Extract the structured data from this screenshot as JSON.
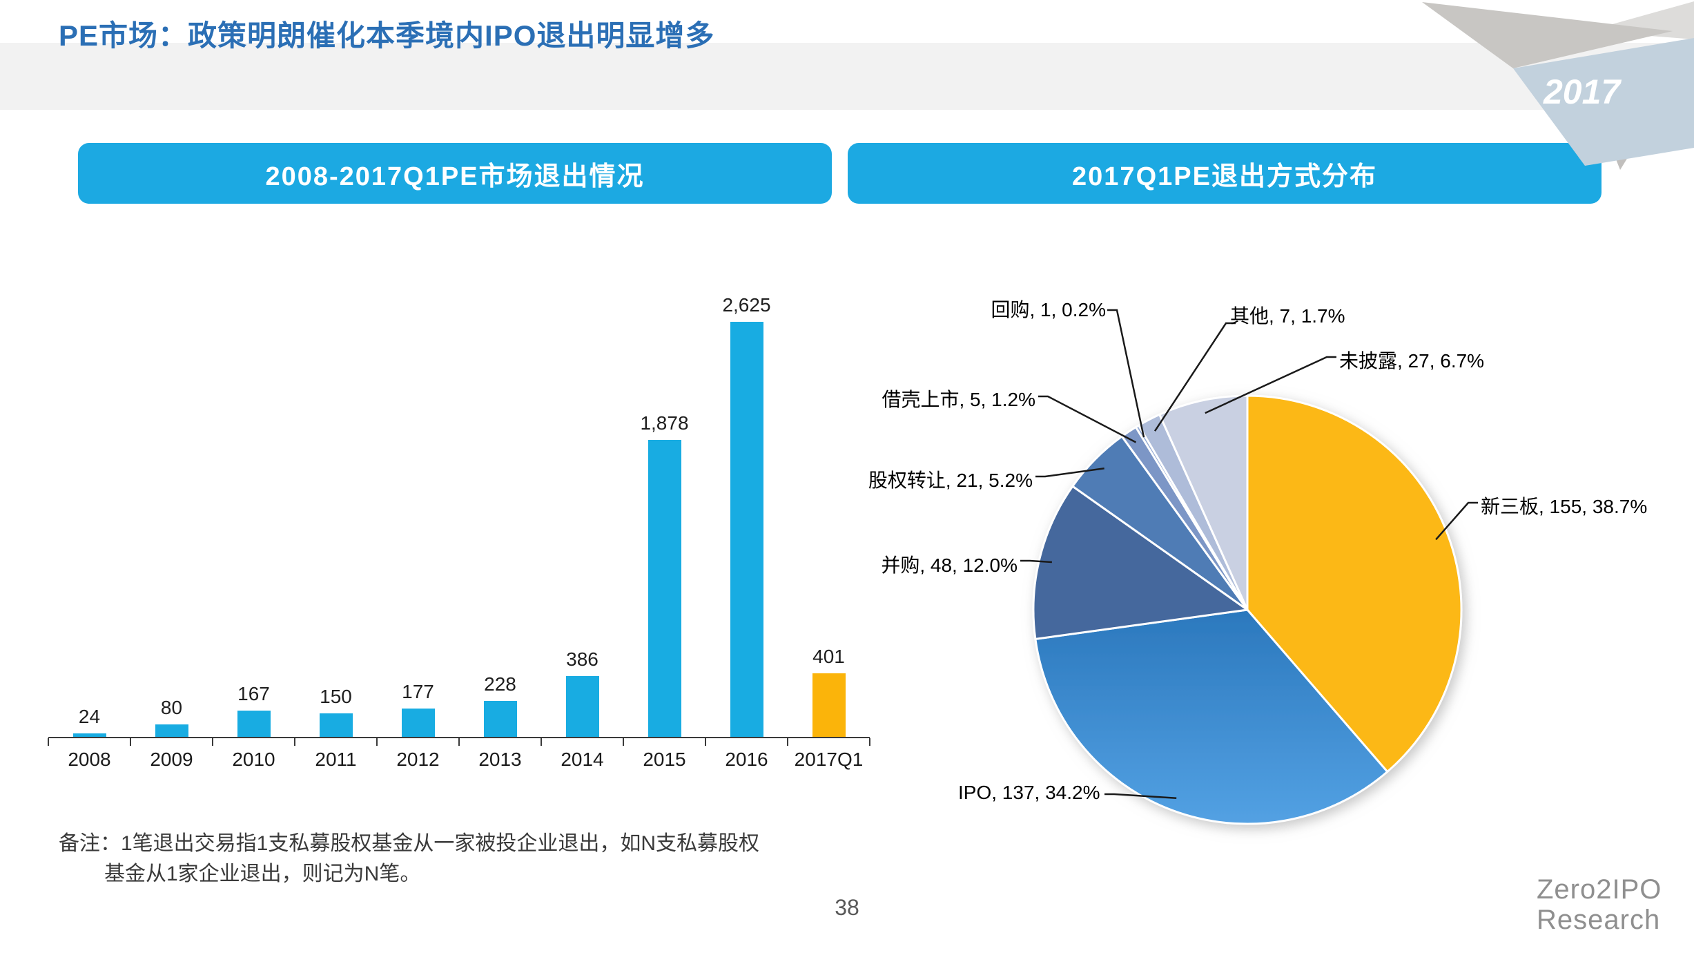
{
  "slide": {
    "title": "PE市场：政策明朗催化本季境内IPO退出明显增多",
    "year_badge": "2017",
    "page_number": "38",
    "note_line1": "备注：1笔退出交易指1支私募股权基金从一家被投企业退出，如N支私募股权",
    "note_line2": "基金从1家企业退出，则记为N笔。",
    "logo_line1": "Zero2IPO",
    "logo_line2": "Research"
  },
  "left_panel": {
    "header": "2008-2017Q1PE市场退出情况"
  },
  "right_panel": {
    "header": "2017Q1PE退出方式分布"
  },
  "colors": {
    "header_pill": "#1CA9E2",
    "title_text": "#2B6FB5",
    "bar_default": "#18ACE2",
    "bar_highlight": "#FBB40A"
  },
  "chart_data": [
    {
      "type": "bar",
      "title": "2008-2017Q1PE市场退出情况",
      "categories": [
        "2008",
        "2009",
        "2010",
        "2011",
        "2012",
        "2013",
        "2014",
        "2015",
        "2016",
        "2017Q1"
      ],
      "values": [
        24,
        80,
        167,
        150,
        177,
        228,
        386,
        1878,
        2625,
        401
      ],
      "value_labels": [
        "24",
        "80",
        "167",
        "150",
        "177",
        "228",
        "386",
        "1,878",
        "2,625",
        "401"
      ],
      "highlight_index": 9,
      "ylim": [
        0,
        2625
      ],
      "gridlines": false,
      "legend": "none"
    },
    {
      "type": "pie",
      "title": "2017Q1PE退出方式分布",
      "start_angle_deg": 0,
      "direction": "clockwise",
      "label_format": "name, value, pct%",
      "slices": [
        {
          "label": "新三板",
          "value": 155,
          "pct": 38.7,
          "color": "#FCB813"
        },
        {
          "label": "IPO",
          "value": 137,
          "pct": 34.2,
          "color": "gradient-blue"
        },
        {
          "label": "并购",
          "value": 48,
          "pct": 12.0,
          "color": "#44689D"
        },
        {
          "label": "股权转让",
          "value": 21,
          "pct": 5.2,
          "color": "#4F7BB5"
        },
        {
          "label": "借壳上市",
          "value": 5,
          "pct": 1.2,
          "color": "#7C96C6"
        },
        {
          "label": "回购",
          "value": 1,
          "pct": 0.2,
          "color": "#93A9D1"
        },
        {
          "label": "其他",
          "value": 7,
          "pct": 1.7,
          "color": "#AEBCD9"
        },
        {
          "label": "未披露",
          "value": 27,
          "pct": 6.7,
          "color": "#C9D0E2"
        }
      ]
    }
  ]
}
